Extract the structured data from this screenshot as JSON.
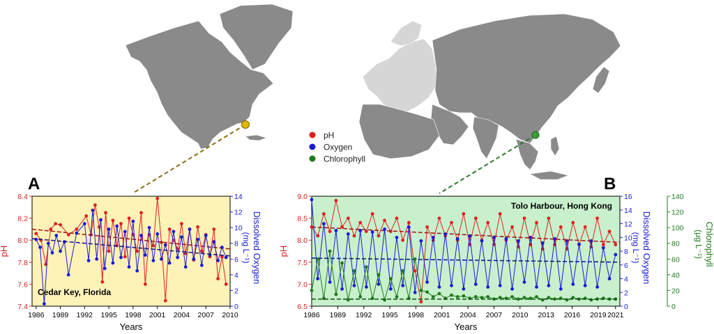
{
  "legend": {
    "items": [
      {
        "label": "pH",
        "color": "#e02020"
      },
      {
        "label": "Oxygen",
        "color": "#1a1ad6"
      },
      {
        "label": "Chlorophyll",
        "color": "#1f7a1f"
      }
    ]
  },
  "colors": {
    "map_land": "#8a8a8a",
    "map_europe": "#d6d6d6",
    "panel_a_bg": "#fdf2b8",
    "panel_b_bg": "#c8f0cc",
    "florida_marker": "#e0b800",
    "hongkong_marker": "#3aa030",
    "ph": "#e02020",
    "oxygen": "#1a1ad6",
    "chlorophyll": "#1f7a1f"
  },
  "chart_data": [
    {
      "type": "line",
      "panel_label": "A",
      "annotation": "Cedar Key, Florida",
      "xlabel": "Years",
      "ylabel_left": "pH",
      "ylabel_right_line1": "Dissolved Oxygen",
      "ylabel_right_line2": "(mg L⁻¹)",
      "xlim": [
        1985.5,
        2010
      ],
      "x_ticks": [
        "1986",
        "1989",
        "1992",
        "1995",
        "1998",
        "2001",
        "2004",
        "2007",
        "2010"
      ],
      "x_tick_values": [
        1986,
        1989,
        1992,
        1995,
        1998,
        2001,
        2004,
        2007,
        2010
      ],
      "ylim_left": [
        7.4,
        8.4
      ],
      "y_ticks_left": [
        "7.4",
        "7.6",
        "7.8",
        "8.0",
        "8.2",
        "8.4"
      ],
      "y_tick_values_left": [
        7.4,
        7.6,
        7.8,
        8.0,
        8.2,
        8.4
      ],
      "ylim_right": [
        0,
        14
      ],
      "y_ticks_right": [
        "0",
        "2",
        "4",
        "6",
        "8",
        "10",
        "12",
        "14"
      ],
      "y_tick_values_right": [
        0,
        2,
        4,
        6,
        8,
        10,
        12,
        14
      ],
      "series": [
        {
          "name": "pH",
          "axis": "left",
          "color": "#e02020",
          "x": [
            1986.0,
            1986.6,
            1987.2,
            1987.8,
            1988.4,
            1989.0,
            1990.0,
            1991.0,
            1992.2,
            1992.8,
            1993.3,
            1993.8,
            1994.2,
            1994.6,
            1995.0,
            1995.5,
            1996.0,
            1996.5,
            1997.0,
            1997.5,
            1998.0,
            1998.5,
            1999.0,
            1999.5,
            2000.0,
            2000.5,
            2001.0,
            2001.5,
            2002.0,
            2002.5,
            2003.0,
            2003.5,
            2004.0,
            2004.5,
            2005.0,
            2005.5,
            2006.0,
            2006.5,
            2007.0,
            2007.5,
            2008.0,
            2008.5,
            2009.0,
            2009.5
          ],
          "y": [
            8.06,
            8.0,
            7.78,
            8.1,
            8.15,
            8.14,
            8.05,
            8.1,
            8.22,
            8.05,
            8.32,
            8.12,
            7.62,
            8.25,
            7.9,
            8.18,
            7.95,
            8.15,
            7.85,
            8.2,
            8.05,
            7.9,
            8.25,
            7.6,
            8.05,
            7.95,
            8.38,
            7.98,
            7.45,
            8.1,
            8.0,
            7.92,
            8.15,
            7.88,
            8.1,
            7.82,
            8.12,
            7.9,
            8.05,
            7.85,
            8.1,
            7.65,
            7.85,
            7.6
          ],
          "trend": [
            8.1,
            7.92
          ]
        },
        {
          "name": "Oxygen",
          "axis": "right",
          "color": "#1a1ad6",
          "x": [
            1986.0,
            1986.5,
            1987.0,
            1987.5,
            1988.0,
            1988.5,
            1989.0,
            1989.5,
            1990.0,
            1991.0,
            1992.0,
            1992.5,
            1993.0,
            1993.5,
            1994.0,
            1994.5,
            1995.0,
            1995.5,
            1996.0,
            1996.5,
            1997.0,
            1997.5,
            1998.0,
            1998.5,
            1999.0,
            1999.5,
            2000.0,
            2000.5,
            2001.0,
            2001.5,
            2002.0,
            2002.5,
            2003.0,
            2003.5,
            2004.0,
            2004.5,
            2005.0,
            2005.5,
            2006.0,
            2006.5,
            2007.0,
            2007.5,
            2008.0,
            2008.5,
            2009.0,
            2009.5
          ],
          "y": [
            8.5,
            7.5,
            0.3,
            8.0,
            6.8,
            9.0,
            7.0,
            8.2,
            4.0,
            9.3,
            10.5,
            5.8,
            12.2,
            6.0,
            11.0,
            4.8,
            9.8,
            5.5,
            10.2,
            6.2,
            9.5,
            5.0,
            10.8,
            4.5,
            9.0,
            6.5,
            10.0,
            5.8,
            9.2,
            6.0,
            7.8,
            5.5,
            9.5,
            6.2,
            8.8,
            5.0,
            9.8,
            6.0,
            8.5,
            5.2,
            9.0,
            6.5,
            8.2,
            5.8,
            7.5,
            6.2
          ],
          "trend": [
            8.6,
            6.4
          ]
        }
      ]
    },
    {
      "type": "line",
      "panel_label": "B",
      "annotation": "Tolo Harbour, Hong Kong",
      "xlabel": "Years",
      "ylabel_left": "pH",
      "ylabel_right_line1": "Dissolved Oxygen",
      "ylabel_right_line2": "(mg L⁻¹)",
      "ylabel_right2_line1": "Chlorophyll",
      "ylabel_right2_line2": "(μg L⁻¹)",
      "xlim": [
        1986,
        2021.5
      ],
      "x_ticks": [
        "1986",
        "1989",
        "1992",
        "1995",
        "1998",
        "2001",
        "2004",
        "2007",
        "2010",
        "2013",
        "2016",
        "2019",
        "2021"
      ],
      "x_tick_values": [
        1986,
        1989,
        1992,
        1995,
        1998,
        2001,
        2004,
        2007,
        2010,
        2013,
        2016,
        2019,
        2021
      ],
      "ylim_left": [
        6.5,
        9.0
      ],
      "y_ticks_left": [
        "6.5",
        "7.0",
        "7.5",
        "8.0",
        "8.5",
        "9.0"
      ],
      "y_tick_values_left": [
        6.5,
        7.0,
        7.5,
        8.0,
        8.5,
        9.0
      ],
      "ylim_right": [
        0,
        16
      ],
      "y_ticks_right": [
        "0",
        "2",
        "4",
        "6",
        "8",
        "10",
        "12",
        "14",
        "16"
      ],
      "y_tick_values_right": [
        0,
        2,
        4,
        6,
        8,
        10,
        12,
        14,
        16
      ],
      "ylim_right2": [
        0,
        140
      ],
      "y_ticks_right2": [
        "0",
        "20",
        "40",
        "60",
        "80",
        "100",
        "120",
        "140"
      ],
      "y_tick_values_right2": [
        0,
        20,
        40,
        60,
        80,
        100,
        120,
        140
      ],
      "series": [
        {
          "name": "pH",
          "axis": "left",
          "color": "#e02020",
          "x": [
            1986,
            1986.7,
            1987.4,
            1988.1,
            1988.8,
            1989.5,
            1990.2,
            1990.9,
            1991.6,
            1992.3,
            1993,
            1993.7,
            1994.4,
            1995.1,
            1995.8,
            1996.5,
            1997.2,
            1997.9,
            1998.6,
            1999.3,
            2000,
            2000.7,
            2001.4,
            2002.1,
            2002.8,
            2003.5,
            2004.2,
            2004.9,
            2005.6,
            2006.3,
            2007,
            2007.7,
            2008.4,
            2009.1,
            2009.8,
            2010.5,
            2011.2,
            2011.9,
            2012.6,
            2013.3,
            2014,
            2014.7,
            2015.4,
            2016.1,
            2016.8,
            2017.5,
            2018.2,
            2018.9,
            2019.6,
            2020.3,
            2021
          ],
          "y": [
            8.3,
            8.1,
            8.6,
            8.2,
            8.9,
            8.3,
            8.5,
            8.1,
            8.4,
            8.2,
            8.6,
            8.1,
            8.45,
            8.2,
            8.5,
            8.0,
            8.4,
            7.3,
            6.6,
            8.3,
            8.0,
            8.5,
            8.1,
            8.4,
            8.0,
            8.6,
            7.9,
            8.5,
            8.0,
            8.4,
            7.9,
            8.6,
            8.0,
            8.3,
            7.85,
            8.5,
            7.9,
            8.4,
            7.8,
            8.5,
            7.9,
            8.3,
            7.8,
            8.4,
            7.9,
            8.3,
            7.85,
            8.5,
            7.9,
            8.2,
            7.9
          ],
          "trend": [
            8.3,
            7.95
          ]
        },
        {
          "name": "Oxygen",
          "axis": "right",
          "color": "#1a1ad6",
          "x": [
            1986,
            1986.7,
            1987.4,
            1988.1,
            1988.8,
            1989.5,
            1990.2,
            1990.9,
            1991.6,
            1992.3,
            1993,
            1993.7,
            1994.4,
            1995.1,
            1995.8,
            1996.5,
            1997.2,
            1997.9,
            1998.6,
            1999.3,
            2000,
            2000.7,
            2001.4,
            2002.1,
            2002.8,
            2003.5,
            2004.2,
            2004.9,
            2005.6,
            2006.3,
            2007,
            2007.7,
            2008.4,
            2009.1,
            2009.8,
            2010.5,
            2011.2,
            2011.9,
            2012.6,
            2013.3,
            2014,
            2014.7,
            2015.4,
            2016.1,
            2016.8,
            2017.5,
            2018.2,
            2018.9,
            2019.6,
            2020.3,
            2021
          ],
          "y": [
            15.5,
            4.0,
            12.0,
            3.5,
            11.0,
            2.5,
            10.5,
            3.0,
            11.0,
            2.8,
            10.8,
            3.2,
            11.2,
            2.5,
            10.0,
            3.0,
            11.5,
            2.0,
            9.5,
            3.5,
            10.0,
            2.8,
            10.5,
            3.0,
            9.8,
            2.5,
            10.2,
            3.2,
            9.5,
            2.8,
            10.0,
            3.0,
            9.8,
            2.5,
            9.5,
            3.5,
            10.0,
            2.8,
            9.2,
            3.0,
            9.8,
            2.5,
            9.5,
            3.2,
            9.0,
            3.0,
            9.5,
            2.8,
            8.5,
            4.0,
            7.5
          ],
          "trend": [
            7.0,
            6.4
          ]
        },
        {
          "name": "Chlorophyll",
          "axis": "right2",
          "color": "#1f7a1f",
          "x": [
            1986,
            1986.7,
            1987.4,
            1988.1,
            1988.8,
            1989.5,
            1990.2,
            1990.9,
            1991.6,
            1992.3,
            1993,
            1993.7,
            1994.4,
            1995.1,
            1995.8,
            1996.5,
            1997.2,
            1997.9,
            1998.6,
            1999.3,
            2000,
            2000.7,
            2001.4,
            2002.1,
            2002.8,
            2003.5,
            2004.2,
            2004.9,
            2005.6,
            2006.3,
            2007,
            2007.7,
            2008.4,
            2009.1,
            2009.8,
            2010.5,
            2011.2,
            2011.9,
            2012.6,
            2013.3,
            2014,
            2014.7,
            2015.4,
            2016.1,
            2016.8,
            2017.5,
            2018.2,
            2018.9,
            2019.6,
            2020.3,
            2021
          ],
          "y": [
            20,
            60,
            10,
            70,
            15,
            55,
            8,
            45,
            12,
            50,
            10,
            40,
            8,
            35,
            12,
            45,
            10,
            60,
            20,
            18,
            12,
            16,
            10,
            14,
            12,
            13,
            10,
            12,
            11,
            12,
            9,
            11,
            10,
            12,
            9,
            11,
            10,
            12,
            8,
            11,
            9,
            10,
            8,
            11,
            9,
            10,
            8,
            9,
            10,
            9,
            9
          ],
          "trend": [
            9,
            9
          ]
        }
      ]
    }
  ]
}
